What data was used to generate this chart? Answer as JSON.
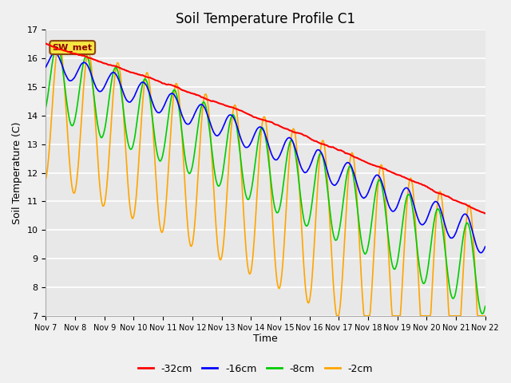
{
  "title": "Soil Temperature Profile C1",
  "xlabel": "Time",
  "ylabel": "Soil Temperature (C)",
  "ylim": [
    7.0,
    17.0
  ],
  "yticks": [
    7.0,
    8.0,
    9.0,
    10.0,
    11.0,
    12.0,
    13.0,
    14.0,
    15.0,
    16.0,
    17.0
  ],
  "xtick_labels": [
    "Nov 7",
    "Nov 8",
    "Nov 9",
    "Nov 10",
    "Nov 11",
    "Nov 12",
    "Nov 13",
    "Nov 14",
    "Nov 15",
    "Nov 16",
    "Nov 17",
    "Nov 18",
    "Nov 19",
    "Nov 20",
    "Nov 21",
    "Nov 22"
  ],
  "annotation_text": "SW_met",
  "annotation_bbox_facecolor": "#f5e642",
  "annotation_bbox_edgecolor": "#8b4513",
  "colors": {
    "-32cm": "#ff0000",
    "-16cm": "#0000ff",
    "-8cm": "#00cc00",
    "-2cm": "#ffa500"
  },
  "legend_labels": [
    "-32cm",
    "-16cm",
    "-8cm",
    "-2cm"
  ],
  "fig_facecolor": "#f0f0f0",
  "plot_bg_color": "#e8e8e8",
  "grid_color": "#ffffff",
  "title_fontsize": 12,
  "axis_fontsize": 9,
  "tick_fontsize": 8
}
